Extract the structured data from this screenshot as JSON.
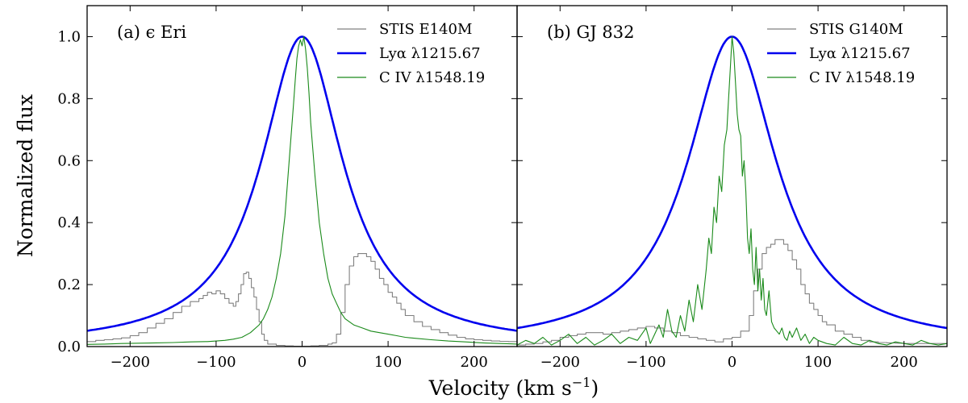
{
  "figure": {
    "xlabel": "Velocity (km s",
    "xlabel_sup": "−1",
    "xlabel_end": ")",
    "ylabel": "Normalized flux"
  },
  "chart_data": [
    {
      "type": "line",
      "panel_label": "(a) ϵ Eri",
      "xlim": [
        -250,
        250
      ],
      "ylim": [
        0,
        1.1
      ],
      "x_ticks": [
        -200,
        -100,
        0,
        100,
        200
      ],
      "x_tick_labels": [
        "−200",
        "−100",
        "0",
        "100",
        "200"
      ],
      "y_ticks": [
        0,
        0.2,
        0.4,
        0.6,
        0.8,
        1.0
      ],
      "y_tick_labels": [
        "0.0",
        "0.2",
        "0.4",
        "0.6",
        "0.8",
        "1.0"
      ],
      "legend_position": "top-right",
      "series": [
        {
          "name": "STIS E140M",
          "color": "#808080",
          "style": "step",
          "x": [
            -250,
            -240,
            -230,
            -220,
            -210,
            -200,
            -190,
            -180,
            -170,
            -160,
            -150,
            -140,
            -130,
            -120,
            -115,
            -110,
            -105,
            -100,
            -95,
            -90,
            -85,
            -80,
            -77,
            -74,
            -71,
            -68,
            -65,
            -62,
            -59,
            -56,
            -53,
            -50,
            -47,
            -44,
            -40,
            -30,
            -20,
            -10,
            0,
            10,
            20,
            30,
            35,
            40,
            45,
            50,
            55,
            60,
            65,
            70,
            75,
            80,
            85,
            90,
            95,
            100,
            105,
            110,
            115,
            120,
            130,
            140,
            150,
            160,
            170,
            180,
            190,
            200,
            210,
            220,
            230,
            240,
            250
          ],
          "values": [
            0.016,
            0.02,
            0.022,
            0.025,
            0.028,
            0.035,
            0.045,
            0.06,
            0.075,
            0.09,
            0.11,
            0.13,
            0.145,
            0.155,
            0.165,
            0.175,
            0.17,
            0.18,
            0.17,
            0.155,
            0.14,
            0.13,
            0.145,
            0.17,
            0.2,
            0.235,
            0.24,
            0.22,
            0.19,
            0.16,
            0.12,
            0.08,
            0.04,
            0.02,
            0.008,
            0.004,
            0.002,
            0.001,
            0.001,
            0.002,
            0.004,
            0.008,
            0.012,
            0.04,
            0.11,
            0.2,
            0.26,
            0.29,
            0.3,
            0.3,
            0.29,
            0.275,
            0.25,
            0.22,
            0.2,
            0.175,
            0.16,
            0.14,
            0.12,
            0.1,
            0.08,
            0.065,
            0.055,
            0.045,
            0.037,
            0.03,
            0.025,
            0.022,
            0.02,
            0.018,
            0.017,
            0.016,
            0.015
          ]
        },
        {
          "name": "Lyα λ1215.67",
          "color": "#0000ee",
          "style": "line",
          "model": {
            "amp": 1.0,
            "gamma": 58
          }
        },
        {
          "name": "C IV λ1548.19",
          "color": "#1a8a1a",
          "style": "line",
          "x": [
            -250,
            -230,
            -210,
            -190,
            -170,
            -150,
            -130,
            -110,
            -100,
            -90,
            -80,
            -70,
            -60,
            -50,
            -45,
            -40,
            -35,
            -30,
            -25,
            -20,
            -15,
            -10,
            -8,
            -6,
            -4,
            -2,
            0,
            2,
            4,
            6,
            8,
            10,
            15,
            20,
            25,
            30,
            35,
            40,
            45,
            50,
            60,
            70,
            80,
            90,
            100,
            110,
            120,
            130,
            150,
            170,
            190,
            210,
            230,
            250
          ],
          "values": [
            0.007,
            0.008,
            0.01,
            0.011,
            0.012,
            0.013,
            0.015,
            0.016,
            0.018,
            0.02,
            0.024,
            0.03,
            0.045,
            0.07,
            0.09,
            0.12,
            0.16,
            0.22,
            0.3,
            0.42,
            0.6,
            0.78,
            0.86,
            0.93,
            0.97,
            0.99,
            0.97,
            1.0,
            0.96,
            0.9,
            0.82,
            0.72,
            0.55,
            0.4,
            0.3,
            0.22,
            0.17,
            0.14,
            0.11,
            0.09,
            0.07,
            0.06,
            0.05,
            0.045,
            0.04,
            0.035,
            0.03,
            0.027,
            0.022,
            0.018,
            0.015,
            0.012,
            0.01,
            0.008
          ]
        }
      ]
    },
    {
      "type": "line",
      "panel_label": "(b) GJ 832",
      "xlim": [
        -250,
        250
      ],
      "ylim": [
        0,
        1.1
      ],
      "x_ticks": [
        -200,
        -100,
        0,
        100,
        200
      ],
      "x_tick_labels": [
        "−200",
        "−100",
        "0",
        "100",
        "200"
      ],
      "y_ticks": [
        0,
        0.2,
        0.4,
        0.6,
        0.8,
        1.0
      ],
      "y_tick_labels": [
        "0.0",
        "0.2",
        "0.4",
        "0.6",
        "0.8",
        "1.0"
      ],
      "legend_position": "top-right",
      "series": [
        {
          "name": "STIS G140M",
          "color": "#808080",
          "style": "step",
          "x": [
            -250,
            -240,
            -230,
            -220,
            -210,
            -200,
            -190,
            -180,
            -170,
            -160,
            -150,
            -140,
            -130,
            -120,
            -110,
            -100,
            -90,
            -80,
            -70,
            -60,
            -50,
            -40,
            -30,
            -20,
            -10,
            0,
            10,
            20,
            25,
            30,
            35,
            40,
            45,
            50,
            55,
            60,
            65,
            70,
            75,
            80,
            85,
            90,
            95,
            100,
            105,
            110,
            120,
            130,
            140,
            150,
            160,
            170,
            180,
            190,
            200,
            210,
            220,
            230,
            240,
            250
          ],
          "values": [
            0.005,
            0.008,
            0.01,
            0.015,
            0.02,
            0.03,
            0.035,
            0.04,
            0.045,
            0.045,
            0.04,
            0.045,
            0.05,
            0.055,
            0.06,
            0.065,
            0.06,
            0.05,
            0.045,
            0.035,
            0.03,
            0.025,
            0.02,
            0.015,
            0.025,
            0.03,
            0.05,
            0.1,
            0.18,
            0.25,
            0.3,
            0.32,
            0.33,
            0.345,
            0.345,
            0.33,
            0.31,
            0.28,
            0.25,
            0.2,
            0.17,
            0.14,
            0.12,
            0.1,
            0.08,
            0.07,
            0.05,
            0.04,
            0.03,
            0.02,
            0.015,
            0.013,
            0.012,
            0.011,
            0.01,
            0.01,
            0.01,
            0.01,
            0.01,
            0.01
          ]
        },
        {
          "name": "Lyα λ1215.67",
          "color": "#0000ee",
          "style": "line",
          "model": {
            "amp": 1.0,
            "gamma": 63
          }
        },
        {
          "name": "C IV λ1548.19",
          "color": "#1a8a1a",
          "style": "line",
          "x": [
            -250,
            -240,
            -230,
            -220,
            -210,
            -200,
            -190,
            -180,
            -170,
            -160,
            -150,
            -140,
            -130,
            -120,
            -110,
            -100,
            -95,
            -90,
            -85,
            -80,
            -75,
            -70,
            -65,
            -60,
            -55,
            -50,
            -45,
            -40,
            -35,
            -30,
            -27,
            -24,
            -21,
            -18,
            -15,
            -12,
            -9,
            -6,
            -4,
            -2,
            0,
            2,
            4,
            6,
            8,
            10,
            12,
            14,
            16,
            18,
            20,
            22,
            24,
            26,
            28,
            30,
            32,
            34,
            36,
            38,
            40,
            43,
            46,
            49,
            52,
            55,
            58,
            61,
            64,
            67,
            70,
            75,
            80,
            85,
            90,
            95,
            100,
            110,
            120,
            130,
            140,
            150,
            160,
            170,
            180,
            190,
            200,
            210,
            220,
            230,
            240,
            250
          ],
          "values": [
            0.005,
            0.02,
            0.01,
            0.03,
            0.005,
            0.02,
            0.04,
            0.01,
            0.03,
            0.005,
            0.02,
            0.04,
            0.01,
            0.03,
            0.02,
            0.06,
            0.01,
            0.04,
            0.07,
            0.03,
            0.12,
            0.05,
            0.03,
            0.1,
            0.05,
            0.15,
            0.08,
            0.2,
            0.12,
            0.25,
            0.35,
            0.3,
            0.45,
            0.4,
            0.55,
            0.5,
            0.65,
            0.7,
            0.8,
            0.9,
            1.0,
            0.95,
            0.85,
            0.75,
            0.7,
            0.68,
            0.55,
            0.6,
            0.5,
            0.35,
            0.3,
            0.38,
            0.25,
            0.2,
            0.32,
            0.18,
            0.25,
            0.15,
            0.22,
            0.12,
            0.1,
            0.18,
            0.08,
            0.06,
            0.05,
            0.04,
            0.06,
            0.03,
            0.02,
            0.05,
            0.03,
            0.06,
            0.02,
            0.04,
            0.01,
            0.03,
            0.02,
            0.01,
            0.005,
            0.03,
            0.01,
            0.005,
            0.02,
            0.01,
            0.005,
            0.015,
            0.01,
            0.005,
            0.02,
            0.01,
            0.005,
            0.01
          ]
        }
      ]
    }
  ]
}
